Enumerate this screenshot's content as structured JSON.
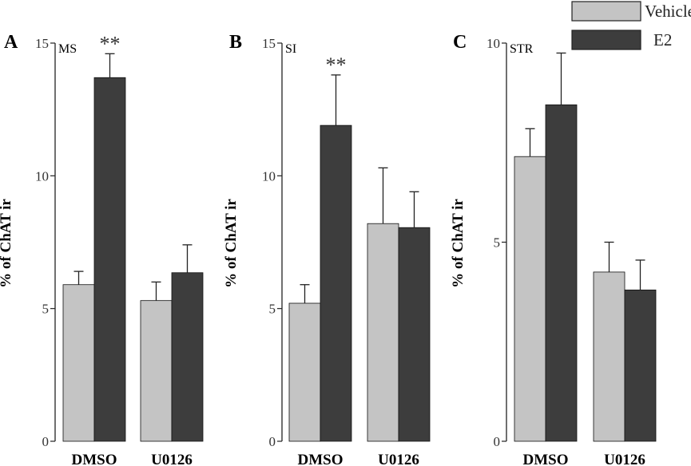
{
  "colors": {
    "vehicle": "#c4c4c4",
    "e2": "#3d3d3d",
    "axis": "#222222",
    "errorbar": "#222222"
  },
  "legend": {
    "placement": "top-right",
    "items": [
      {
        "name": "Vehicle",
        "color": "#c4c4c4"
      },
      {
        "name": "E2",
        "color": "#3d3d3d"
      }
    ]
  },
  "chart_data": [
    {
      "type": "bar",
      "panel": "A",
      "region": "MS",
      "ylabel": "% of ChAT ir",
      "ylim": [
        0,
        15
      ],
      "yticks": [
        0,
        5,
        10,
        15
      ],
      "categories": [
        "DMSO",
        "U0126"
      ],
      "series": [
        {
          "name": "Vehicle",
          "values": [
            5.9,
            5.3
          ],
          "errors": [
            0.5,
            0.7
          ]
        },
        {
          "name": "E2",
          "values": [
            13.7,
            6.35
          ],
          "errors": [
            0.9,
            1.05
          ]
        }
      ],
      "significance": [
        {
          "category": "DMSO",
          "series": "E2",
          "label": "**"
        }
      ]
    },
    {
      "type": "bar",
      "panel": "B",
      "region": "SI",
      "ylabel": "% of ChAT ir",
      "ylim": [
        0,
        15
      ],
      "yticks": [
        0,
        5,
        10,
        15
      ],
      "categories": [
        "DMSO",
        "U0126"
      ],
      "series": [
        {
          "name": "Vehicle",
          "values": [
            5.2,
            8.2
          ],
          "errors": [
            0.7,
            2.1
          ]
        },
        {
          "name": "E2",
          "values": [
            11.9,
            8.05
          ],
          "errors": [
            1.9,
            1.35
          ]
        }
      ],
      "significance": [
        {
          "category": "DMSO",
          "series": "E2",
          "label": "**"
        }
      ]
    },
    {
      "type": "bar",
      "panel": "C",
      "region": "STR",
      "ylabel": "% of ChAT ir",
      "ylim": [
        0,
        10
      ],
      "yticks": [
        0,
        5,
        10
      ],
      "categories": [
        "DMSO",
        "U0126"
      ],
      "series": [
        {
          "name": "Vehicle",
          "values": [
            7.15,
            4.25
          ],
          "errors": [
            0.7,
            0.75
          ]
        },
        {
          "name": "E2",
          "values": [
            8.45,
            3.8
          ],
          "errors": [
            1.3,
            0.75
          ]
        }
      ],
      "significance": []
    }
  ]
}
